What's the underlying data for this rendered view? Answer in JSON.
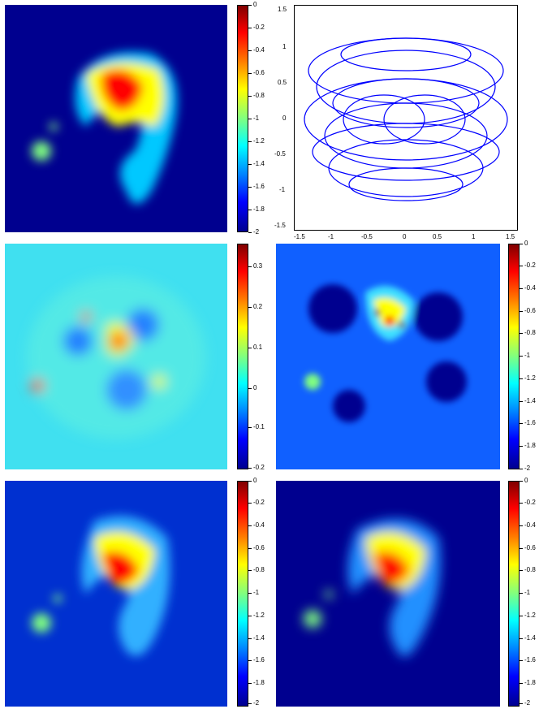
{
  "panels": [
    {
      "id": "p1",
      "colorbar_ticks": [
        "0",
        "-0.2",
        "-0.4",
        "-0.6",
        "-0.8",
        "-1",
        "-1.2",
        "-1.4",
        "-1.6",
        "-1.8",
        "-2"
      ]
    },
    {
      "id": "p2",
      "x_ticks": [
        "-1.5",
        "-1",
        "-0.5",
        "0",
        "0.5",
        "1",
        "1.5"
      ],
      "y_ticks": [
        "1.5",
        "1",
        "0.5",
        "0",
        "-0.5",
        "-1",
        "-1.5"
      ]
    },
    {
      "id": "p3",
      "colorbar_ticks": [
        "0.3",
        "0.2",
        "0.1",
        "0",
        "-0.1",
        "-0.2"
      ]
    },
    {
      "id": "p4",
      "colorbar_ticks": [
        "0",
        "-0.2",
        "-0.4",
        "-0.6",
        "-0.8",
        "-1",
        "-1.2",
        "-1.4",
        "-1.6",
        "-1.8",
        "-2"
      ]
    },
    {
      "id": "p5",
      "colorbar_ticks": [
        "0",
        "-0.2",
        "-0.4",
        "-0.6",
        "-0.8",
        "-1",
        "-1.2",
        "-1.4",
        "-1.6",
        "-1.8",
        "-2"
      ]
    },
    {
      "id": "p6",
      "colorbar_ticks": [
        "0",
        "-0.2",
        "-0.4",
        "-0.6",
        "-0.8",
        "-1",
        "-1.2",
        "-1.4",
        "-1.6",
        "-1.8",
        "-2"
      ]
    }
  ],
  "colors": {
    "deep_blue": "#00008f",
    "cyan": "#00ffff",
    "yellow": "#ffff00",
    "red": "#ff0000",
    "dark_red": "#800000",
    "line_blue": "#0000ff"
  }
}
